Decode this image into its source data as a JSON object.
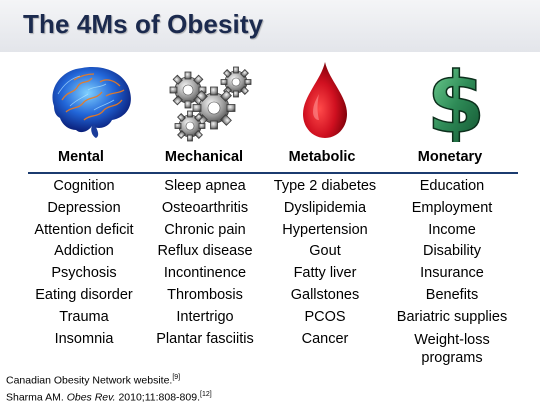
{
  "title": "The 4Ms of Obesity",
  "colors": {
    "title": "#1b2a4e",
    "rule": "#1b3b6f",
    "drop": "#c8101c",
    "dollar": "#2e8b57"
  },
  "icons": [
    "brain-icon",
    "gears-icon",
    "blood-drop-icon",
    "dollar-sign-icon"
  ],
  "columns": [
    {
      "heading": "Mental",
      "items": [
        "Cognition",
        "Depression",
        "Attention deficit",
        "Addiction",
        "Psychosis",
        "Eating disorder",
        "Trauma",
        "Insomnia"
      ]
    },
    {
      "heading": "Mechanical",
      "items": [
        "Sleep apnea",
        "Osteoarthritis",
        "Chronic pain",
        "Reflux disease",
        "Incontinence",
        "Thrombosis",
        "Intertrigo",
        "Plantar fasciitis"
      ]
    },
    {
      "heading": "Metabolic",
      "items": [
        "Type 2 diabetes",
        "Dyslipidemia",
        "Hypertension",
        "Gout",
        "Fatty liver",
        "Gallstones",
        "PCOS",
        "Cancer"
      ]
    },
    {
      "heading": "Monetary",
      "items": [
        "Education",
        "Employment",
        "Income",
        "Disability",
        "Insurance",
        "Benefits",
        "Bariatric supplies",
        "Weight-loss programs"
      ]
    }
  ],
  "references": {
    "ref1_text": "Canadian Obesity Network website.",
    "ref1_sup": "[9]",
    "ref2_author": "Sharma AM. ",
    "ref2_journal": "Obes Rev.",
    "ref2_rest": " 2010;11:808-809.",
    "ref2_sup": "[12]"
  }
}
